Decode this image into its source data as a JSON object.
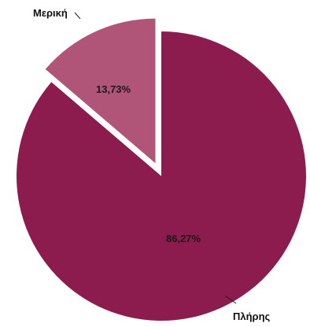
{
  "chart_data": {
    "type": "pie",
    "title": "",
    "categories": [
      "Πλήρης",
      "Μερική"
    ],
    "values": [
      86.27,
      13.73
    ],
    "data_labels": [
      "86,27%",
      "13,73%"
    ],
    "exploded": [
      false,
      true
    ],
    "colors": [
      "#8c1c4e",
      "#b05478"
    ],
    "legend": "none",
    "start": "top"
  }
}
